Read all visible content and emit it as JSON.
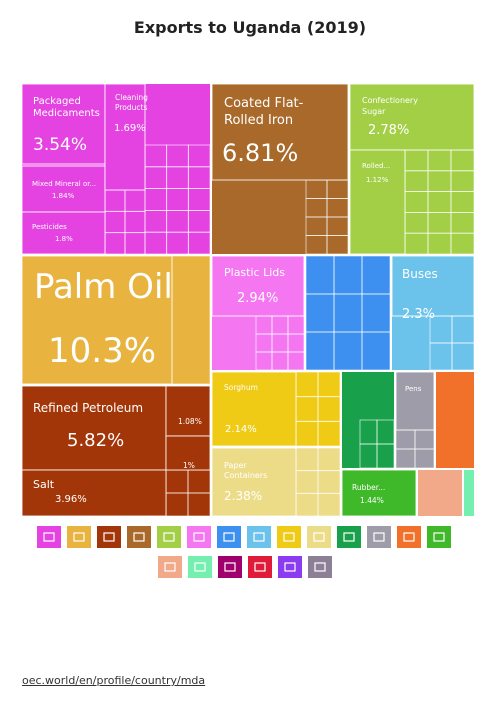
{
  "chart_data": {
    "type": "treemap",
    "title": "Exports to Uganda (2019)",
    "tiles": [
      {
        "label": "Palm Oil",
        "value": 10.3,
        "share": "10.3%",
        "color": "#E8B33E"
      },
      {
        "label": "Coated Flat-Rolled Iron",
        "value": 6.81,
        "share": "6.81%",
        "color": "#A8692A"
      },
      {
        "label": "Refined Petroleum",
        "value": 5.82,
        "share": "5.82%",
        "color": "#A33608"
      },
      {
        "label": "Salt",
        "value": 3.96,
        "share": "3.96%",
        "color": "#A33608"
      },
      {
        "label": "Packaged Medicaments",
        "value": 3.54,
        "share": "3.54%",
        "color": "#E542E2"
      },
      {
        "label": "Plastic Lids",
        "value": 2.94,
        "share": "2.94%",
        "color": "#F477F1"
      },
      {
        "label": "Confectionery Sugar",
        "value": 2.78,
        "share": "2.78%",
        "color": "#A3CF47"
      },
      {
        "label": "Paper Containers",
        "value": 2.38,
        "share": "2.38%",
        "color": "#EDDC87"
      },
      {
        "label": "Buses",
        "value": 2.3,
        "share": "2.3%",
        "color": "#6BC2EA"
      },
      {
        "label": "Sorghum",
        "value": 2.14,
        "share": "2.14%",
        "color": "#F0CB15"
      },
      {
        "label": "Mixed Mineral or...",
        "value": 1.84,
        "share": "1.84%",
        "color": "#E542E2"
      },
      {
        "label": "Pesticides",
        "value": 1.8,
        "share": "1.8%",
        "color": "#E542E2"
      },
      {
        "label": "Cleaning Products",
        "value": 1.69,
        "share": "1.69%",
        "color": "#E542E2"
      },
      {
        "label": "Rubber...",
        "value": 1.44,
        "share": "1.44%",
        "color": "#3FB829"
      },
      {
        "label": "Rolled...",
        "value": 1.12,
        "share": "1.12%",
        "color": "#A3CF47"
      },
      {
        "label": "",
        "value": 1.08,
        "share": "1.08%",
        "color": "#A33608"
      },
      {
        "label": "",
        "value": 1.0,
        "share": "1%",
        "color": "#A33608"
      },
      {
        "label": "Pens",
        "value": 0,
        "share": "",
        "color": "#9E9CA8"
      }
    ]
  },
  "legend": {
    "row1": [
      {
        "icon": "animal-products-icon",
        "color": "#E542E2"
      },
      {
        "icon": "vegetable-products-icon",
        "color": "#E8B33E"
      },
      {
        "icon": "mineral-products-icon",
        "color": "#A33608"
      },
      {
        "icon": "metals-icon",
        "color": "#A8692A"
      },
      {
        "icon": "foodstuffs-icon",
        "color": "#A3CF47"
      },
      {
        "icon": "plastics-icon",
        "color": "#F477F1"
      },
      {
        "icon": "machines-icon",
        "color": "#3D8FF0"
      },
      {
        "icon": "transportation-icon",
        "color": "#6BC2EA"
      },
      {
        "icon": "textiles-icon",
        "color": "#F0CB15"
      },
      {
        "icon": "paper-goods-icon",
        "color": "#EDDC87"
      },
      {
        "icon": "instruments-icon",
        "color": "#18A04A"
      },
      {
        "icon": "miscellaneous-icon",
        "color": "#9E9CA8"
      },
      {
        "icon": "stone-glass-icon",
        "color": "#F2712A"
      },
      {
        "icon": "wood-products-icon",
        "color": "#3FB829"
      }
    ],
    "row2": [
      {
        "icon": "footwear-icon",
        "color": "#F2A98A"
      },
      {
        "icon": "weapons-icon",
        "color": "#74EFB0"
      },
      {
        "icon": "arts-antiques-icon",
        "color": "#A0006E"
      },
      {
        "icon": "precious-metals-icon",
        "color": "#E01B3A"
      },
      {
        "icon": "chemical-icon",
        "color": "#8C3CF0"
      },
      {
        "icon": "unknown-icon",
        "color": "#8C7F96"
      }
    ]
  },
  "source": "oec.world/en/profile/country/mda"
}
